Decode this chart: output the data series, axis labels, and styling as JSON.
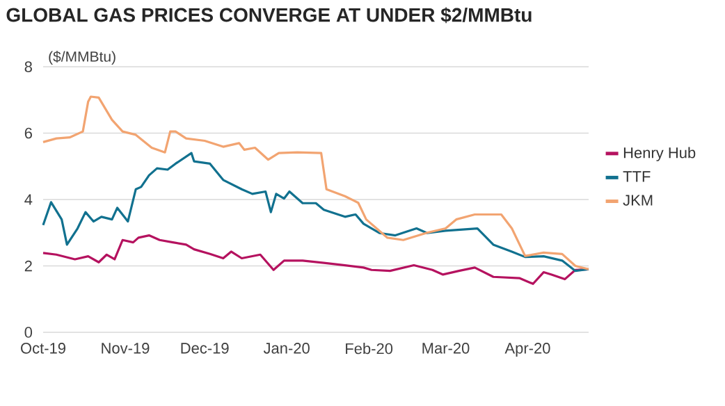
{
  "chart_data": {
    "type": "line",
    "title": "GLOBAL GAS PRICES CONVERGE AT UNDER $2/MMBtu",
    "ylabel": "($/MMBtu)",
    "xlim": [
      "2019-10-01",
      "2020-04-24"
    ],
    "xticks": [
      {
        "value": "2019-10-01",
        "label": "Oct-19"
      },
      {
        "value": "2019-11-01",
        "label": "Nov-19"
      },
      {
        "value": "2019-12-01",
        "label": "Dec-19"
      },
      {
        "value": "2020-01-01",
        "label": "Jan-20"
      },
      {
        "value": "2020-02-01",
        "label": "Feb-20"
      },
      {
        "value": "2020-03-01",
        "label": "Mar-20"
      },
      {
        "value": "2020-04-01",
        "label": "Apr-20"
      }
    ],
    "ylim": [
      0,
      8
    ],
    "yticks": [
      0,
      2,
      4,
      6,
      8
    ],
    "grid": "y",
    "legend": "right",
    "marker": "none",
    "line_style": "solid",
    "series": [
      {
        "name": "Henry Hub",
        "color": "#b5125f",
        "x": [
          "2019-10-01",
          "2019-10-06",
          "2019-10-13",
          "2019-10-18",
          "2019-10-22",
          "2019-10-25",
          "2019-10-28",
          "2019-10-31",
          "2019-11-04",
          "2019-11-06",
          "2019-11-10",
          "2019-11-14",
          "2019-11-19",
          "2019-11-24",
          "2019-11-27",
          "2019-12-03",
          "2019-12-08",
          "2019-12-11",
          "2019-12-15",
          "2019-12-22",
          "2019-12-27",
          "2019-12-31",
          "2020-01-07",
          "2020-01-15",
          "2020-01-23",
          "2020-01-30",
          "2020-02-02",
          "2020-02-09",
          "2020-02-18",
          "2020-02-25",
          "2020-02-29",
          "2020-03-06",
          "2020-03-12",
          "2020-03-19",
          "2020-03-29",
          "2020-04-03",
          "2020-04-07",
          "2020-04-10",
          "2020-04-15",
          "2020-04-19",
          "2020-04-24"
        ],
        "values": [
          2.39,
          2.34,
          2.2,
          2.29,
          2.11,
          2.34,
          2.2,
          2.78,
          2.71,
          2.85,
          2.92,
          2.78,
          2.71,
          2.64,
          2.5,
          2.36,
          2.23,
          2.43,
          2.23,
          2.34,
          1.88,
          2.16,
          2.16,
          2.09,
          2.02,
          1.95,
          1.88,
          1.85,
          2.02,
          1.88,
          1.74,
          1.85,
          1.95,
          1.67,
          1.63,
          1.46,
          1.81,
          1.74,
          1.6,
          1.88,
          1.9
        ]
      },
      {
        "name": "TTF",
        "color": "#11718f",
        "x": [
          "2019-10-01",
          "2019-10-04",
          "2019-10-08",
          "2019-10-10",
          "2019-10-14",
          "2019-10-17",
          "2019-10-20",
          "2019-10-23",
          "2019-10-27",
          "2019-10-29",
          "2019-11-02",
          "2019-11-05",
          "2019-11-07",
          "2019-11-10",
          "2019-11-13",
          "2019-11-17",
          "2019-11-20",
          "2019-11-26",
          "2019-11-27",
          "2019-12-03",
          "2019-12-08",
          "2019-12-15",
          "2019-12-19",
          "2019-12-24",
          "2019-12-26",
          "2019-12-28",
          "2019-12-31",
          "2020-01-02",
          "2020-01-07",
          "2020-01-12",
          "2020-01-15",
          "2020-01-23",
          "2020-01-27",
          "2020-01-30",
          "2020-02-05",
          "2020-02-11",
          "2020-02-19",
          "2020-02-23",
          "2020-03-01",
          "2020-03-13",
          "2020-03-19",
          "2020-03-26",
          "2020-03-31",
          "2020-04-07",
          "2020-04-14",
          "2020-04-19",
          "2020-04-24"
        ],
        "values": [
          3.23,
          3.92,
          3.4,
          2.64,
          3.13,
          3.62,
          3.34,
          3.48,
          3.4,
          3.75,
          3.34,
          4.31,
          4.38,
          4.73,
          4.94,
          4.9,
          5.08,
          5.4,
          5.15,
          5.08,
          4.59,
          4.31,
          4.17,
          4.24,
          3.62,
          4.17,
          4.03,
          4.24,
          3.89,
          3.89,
          3.69,
          3.48,
          3.55,
          3.27,
          2.99,
          2.92,
          3.13,
          2.99,
          3.06,
          3.13,
          2.64,
          2.43,
          2.27,
          2.29,
          2.16,
          1.85,
          1.9
        ]
      },
      {
        "name": "JKM",
        "color": "#f2a471",
        "x": [
          "2019-10-01",
          "2019-10-06",
          "2019-10-11",
          "2019-10-16",
          "2019-10-18",
          "2019-10-19",
          "2019-10-22",
          "2019-10-27",
          "2019-10-31",
          "2019-11-05",
          "2019-11-11",
          "2019-11-16",
          "2019-11-18",
          "2019-11-20",
          "2019-11-24",
          "2019-12-01",
          "2019-12-08",
          "2019-12-14",
          "2019-12-16",
          "2019-12-20",
          "2019-12-25",
          "2019-12-29",
          "2020-01-05",
          "2020-01-14",
          "2020-01-16",
          "2020-01-23",
          "2020-01-28",
          "2020-01-31",
          "2020-02-08",
          "2020-02-14",
          "2020-02-23",
          "2020-03-01",
          "2020-03-05",
          "2020-03-12",
          "2020-03-22",
          "2020-03-26",
          "2020-03-31",
          "2020-04-07",
          "2020-04-14",
          "2020-04-19",
          "2020-04-24"
        ],
        "values": [
          5.73,
          5.84,
          5.87,
          6.05,
          6.95,
          7.1,
          7.07,
          6.4,
          6.05,
          5.95,
          5.56,
          5.42,
          6.05,
          6.05,
          5.84,
          5.77,
          5.59,
          5.7,
          5.5,
          5.56,
          5.2,
          5.4,
          5.42,
          5.4,
          4.31,
          4.1,
          3.9,
          3.4,
          2.85,
          2.78,
          3.0,
          3.13,
          3.4,
          3.55,
          3.55,
          3.13,
          2.3,
          2.4,
          2.36,
          2.0,
          1.9
        ]
      }
    ]
  }
}
